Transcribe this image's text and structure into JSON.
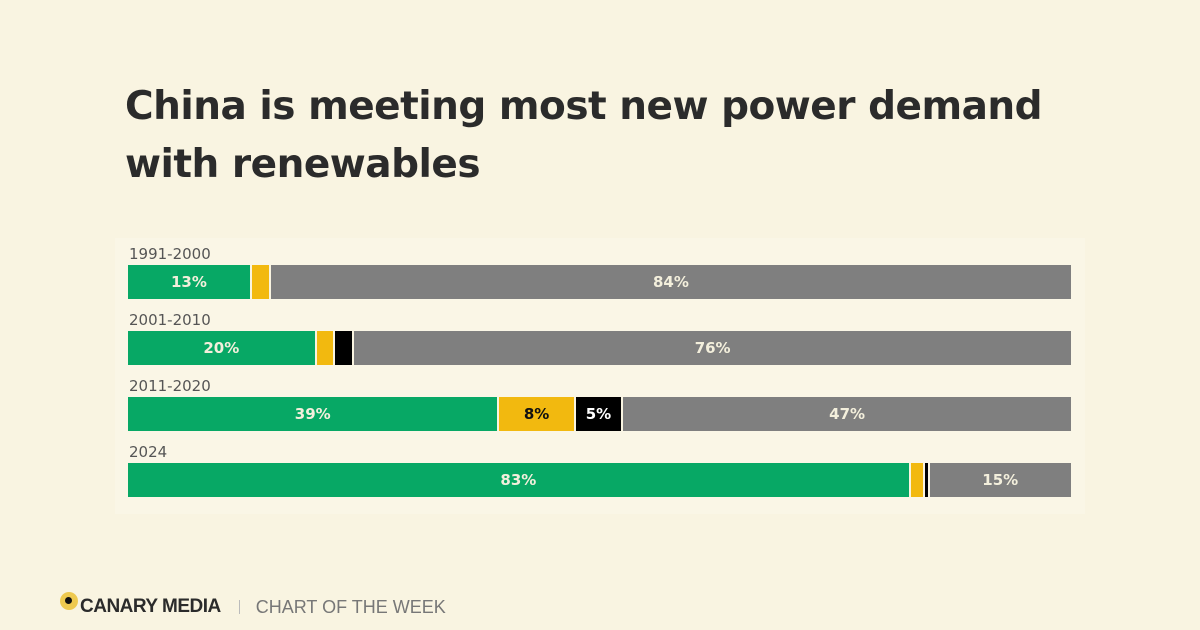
{
  "chart_data": {
    "type": "bar",
    "orientation": "horizontal",
    "stacked": true,
    "title": "China is meeting most new power demand with renewables",
    "categories": [
      "1991-2000",
      "2001-2010",
      "2011-2020",
      "2024"
    ],
    "series": [
      {
        "color": "#07a865",
        "values": [
          13,
          20,
          39,
          83
        ],
        "labels": [
          "13%",
          "20%",
          "39%",
          "83%"
        ],
        "label_color": "#f3efdc"
      },
      {
        "color": "#f2b90f",
        "values": [
          2,
          2,
          8,
          1.5
        ],
        "labels": [
          "",
          "",
          "8%",
          ""
        ],
        "label_color": "#111111"
      },
      {
        "color": "#000000",
        "values": [
          0,
          2,
          5,
          0.5
        ],
        "labels": [
          "",
          "",
          "5%",
          ""
        ],
        "label_color": "#ffffff"
      },
      {
        "color": "#7f7f7f",
        "values": [
          84,
          76,
          47,
          15
        ],
        "labels": [
          "84%",
          "76%",
          "47%",
          "15%"
        ],
        "label_color": "#f3efdc"
      }
    ],
    "xlim": [
      0,
      100
    ],
    "grid": false,
    "legend": "none"
  },
  "footer": {
    "brand": "CANARY MEDIA",
    "tagline": "CHART OF THE WEEK"
  }
}
